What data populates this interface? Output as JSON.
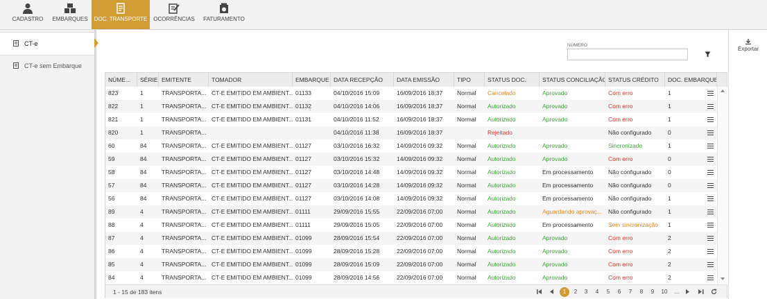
{
  "nav": {
    "items": [
      "CADASTRO",
      "EMBARQUES",
      "DOC. TRANSPORTE",
      "OCORRÊNCIAS",
      "FATURAMENTO"
    ],
    "active": 2
  },
  "sidebar": {
    "items": [
      "CT-e",
      "CT-e sem Embarque"
    ],
    "active": 0
  },
  "actions": {
    "export": "Exportar"
  },
  "filter": {
    "label": "NÚMERO"
  },
  "table": {
    "columns": [
      "NÚME...",
      "SÉRIE",
      "EMITENTE",
      "TOMADOR",
      "EMBARQUE",
      "DATA RECEPÇÃO",
      "DATA EMISSÃO",
      "TIPO",
      "STATUS DOC.",
      "STATUS CONCILIAÇÃO",
      "STATUS CRÉDITO",
      "DOC. EMBARQUE"
    ],
    "rows": [
      [
        "823",
        "1",
        "TRANSPORTA...",
        "CT-E EMITIDO EM AMBIENT...",
        "01133",
        "04/10/2016 15:09",
        "16/09/2016 18:37",
        "Normal",
        "Cancelado",
        "Aprovado",
        "Com erro",
        "1"
      ],
      [
        "822",
        "1",
        "TRANSPORTA...",
        "CT-E EMITIDO EM AMBIENT...",
        "01132",
        "04/10/2016 14:06",
        "16/09/2016 18:37",
        "Normal",
        "Autorizado",
        "Aprovado",
        "Com erro",
        "1"
      ],
      [
        "821",
        "1",
        "TRANSPORTA...",
        "CT-E EMITIDO EM AMBIENT...",
        "01131",
        "04/10/2016 11:52",
        "16/09/2016 18:37",
        "Normal",
        "Autorizado",
        "Aprovado",
        "Com erro",
        "1"
      ],
      [
        "820",
        "1",
        "TRANSPORTA...",
        null,
        null,
        "04/10/2016 11:38",
        "16/09/2016 18:37",
        null,
        "Rejeitado",
        null,
        "Não configurado",
        "0"
      ],
      [
        "60",
        "84",
        "TRANSPORTA...",
        "CT-E EMITIDO EM AMBIENT...",
        "01127",
        "03/10/2016 16:32",
        "14/09/2016 09:32",
        "Normal",
        "Autorizado",
        "Aprovado",
        "Sincronizado",
        "1"
      ],
      [
        "59",
        "84",
        "TRANSPORTA...",
        "CT-E EMITIDO EM AMBIENT...",
        "01127",
        "03/10/2016 15:32",
        "14/09/2016 09:32",
        "Normal",
        "Autorizado",
        "Aprovado",
        "Com erro",
        "0"
      ],
      [
        "58",
        "84",
        "TRANSPORTA...",
        "CT-E EMITIDO EM AMBIENT...",
        "01127",
        "03/10/2016 14:48",
        "14/09/2016 09:32",
        "Normal",
        "Autorizado",
        "Em processamento",
        "Não configurado",
        "0"
      ],
      [
        "57",
        "84",
        "TRANSPORTA...",
        "CT-E EMITIDO EM AMBIENT...",
        "01127",
        "03/10/2016 14:28",
        "14/09/2016 09:32",
        "Normal",
        "Autorizado",
        "Em processamento",
        "Não configurado",
        "0"
      ],
      [
        "56",
        "84",
        "TRANSPORTA...",
        "CT-E EMITIDO EM AMBIENT...",
        "01127",
        "03/10/2016 14:08",
        "14/09/2016 09:32",
        "Normal",
        "Autorizado",
        "Em processamento",
        "Não configurado",
        "1"
      ],
      [
        "89",
        "4",
        "TRANSPORTA...",
        "CT-E EMITIDO EM AMBIENT...",
        "01111",
        "29/09/2016 15:55",
        "22/09/2016 07:00",
        "Normal",
        "Autorizado",
        "Aguardando aprovaç...",
        "Não configurado",
        "1"
      ],
      [
        "88",
        "4",
        "TRANSPORTA...",
        "CT-E EMITIDO EM AMBIENT...",
        "01111",
        "29/09/2016 15:05",
        "22/09/2016 07:00",
        "Normal",
        "Autorizado",
        "Em processamento",
        "Sem sincronização",
        "1"
      ],
      [
        "87",
        "4",
        "TRANSPORTA...",
        "CT-E EMITIDO EM AMBIENT...",
        "01099",
        "28/09/2016 15:54",
        "22/09/2016 07:00",
        "Normal",
        "Autorizado",
        "Aprovado",
        "Com erro",
        "2"
      ],
      [
        "86",
        "4",
        "TRANSPORTA...",
        "CT-E EMITIDO EM AMBIENT...",
        "01099",
        "28/09/2016 15:28",
        "22/09/2016 07:00",
        "Normal",
        "Autorizado",
        "Aprovado",
        "Com erro",
        "2"
      ],
      [
        "85",
        "4",
        "TRANSPORTA...",
        "CT-E EMITIDO EM AMBIENT...",
        "01099",
        "28/09/2016 15:09",
        "22/09/2016 07:00",
        "Normal",
        "Autorizado",
        "Aprovado",
        "Com erro",
        "2"
      ],
      [
        "84",
        "4",
        "TRANSPORTA...",
        "CT-E EMITIDO EM AMBIENT...",
        "01099",
        "28/09/2016 14:56",
        "22/09/2016 07:00",
        "Normal",
        "Autorizado",
        "Aprovado",
        "Com erro",
        "2"
      ]
    ]
  },
  "status_colors": {
    "Cancelado": "#e8891e",
    "Autorizado": "#3aa935",
    "Aprovado": "#3aa935",
    "Sincronizado": "#3aa935",
    "Com erro": "#e0342c",
    "Rejeitado": "#e0342c",
    "Aguardando aprovaç...": "#e8891e",
    "Sem sincronização": "#e8891e"
  },
  "footer": {
    "summary": "1 - 15 de 183 itens",
    "pages": [
      "1",
      "2",
      "3",
      "4",
      "5",
      "6",
      "7",
      "8",
      "9",
      "10",
      "..."
    ],
    "current": 0
  }
}
